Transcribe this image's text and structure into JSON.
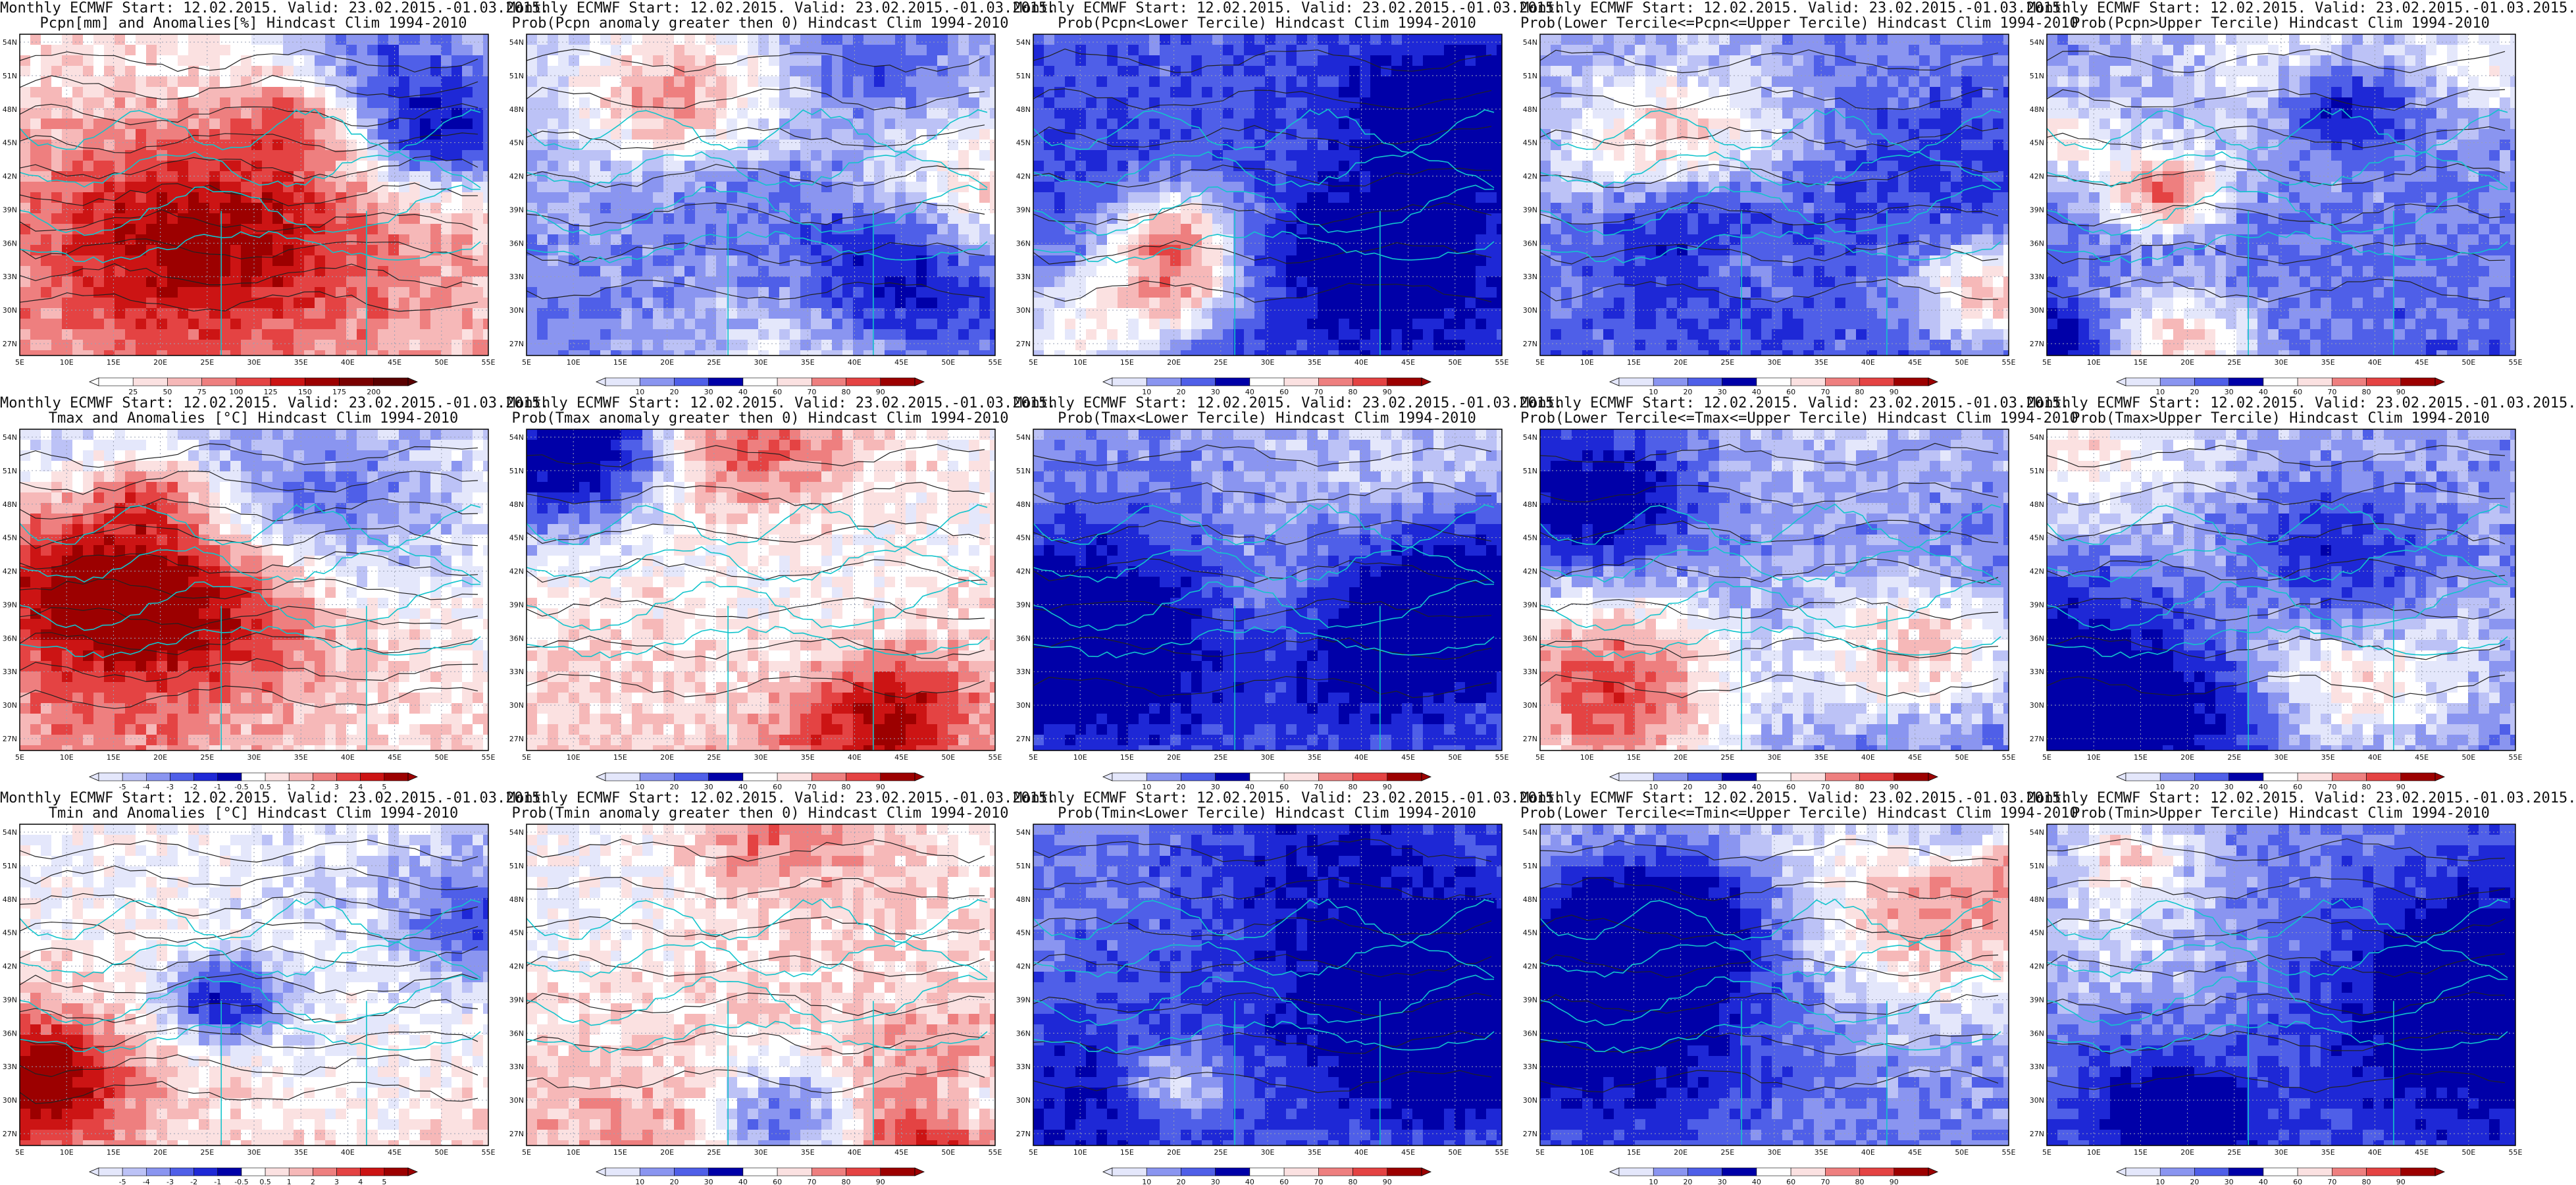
{
  "figure": {
    "kind": "ECMWF monthly forecast map grid",
    "rows": 3,
    "cols": 5
  },
  "map_axes": {
    "lon_labels": [
      "5E",
      "10E",
      "15E",
      "20E",
      "25E",
      "30E",
      "35E",
      "40E",
      "45E",
      "50E",
      "55E"
    ],
    "lat_labels": [
      "54N",
      "51N",
      "48N",
      "45N",
      "42N",
      "39N",
      "36N",
      "33N",
      "30N",
      "27N"
    ]
  },
  "colorbars": {
    "pcpn_anom": [
      "25",
      "50",
      "75",
      "100",
      "125",
      "150",
      "175",
      "200"
    ],
    "temp_anom": [
      "-5",
      "-4",
      "-3",
      "-2",
      "-1",
      "-0.5",
      "0.5",
      "1",
      "2",
      "3",
      "4",
      "5"
    ],
    "prob": [
      "10",
      "20",
      "30",
      "40",
      "60",
      "70",
      "80",
      "90"
    ]
  },
  "palettes": {
    "blues": [
      "#0000a8",
      "#1e28d6",
      "#4f5fe8",
      "#8a95f0",
      "#bcc2f6",
      "#e4e7fb"
    ],
    "reds": [
      "#fbe1e1",
      "#f6b8b8",
      "#ee7f7f",
      "#e44343",
      "#cc1414",
      "#9c0000"
    ],
    "land_contour": "#12c4cc",
    "isoline": "#222222"
  },
  "panels": [
    {
      "line1": "Monthly ECMWF Start: 12.02.2015. Valid: 23.02.2015.-01.03.2015.",
      "line2": "Pcpn[mm] and Anomalies[%] Hindcast Clim 1994-2010",
      "bias": 0.35,
      "seed": 11,
      "cb": "pcpn_anom"
    },
    {
      "line1": "Monthly ECMWF Start: 12.02.2015. Valid: 23.02.2015.-01.03.2015.",
      "line2": "Prob(Pcpn anomaly greater then 0) Hindcast Clim 1994-2010",
      "bias": -0.35,
      "seed": 12,
      "cb": "prob"
    },
    {
      "line1": "Monthly ECMWF Start: 12.02.2015. Valid: 23.02.2015.-01.03.2015.",
      "line2": "Prob(Pcpn<Lower Tercile) Hindcast Clim 1994-2010",
      "bias": -0.7,
      "seed": 13,
      "cb": "prob"
    },
    {
      "line1": "Monthly ECMWF Start: 12.02.2015. Valid: 23.02.2015.-01.03.2015.",
      "line2": "Prob(Lower Tercile<=Pcpn<=Upper Tercile) Hindcast Clim 1994-2010",
      "bias": -0.5,
      "seed": 14,
      "cb": "prob"
    },
    {
      "line1": "Monthly ECMWF Start: 12.02.2015. Valid: 23.02.2015.-01.03.2015.",
      "line2": "Prob(Pcpn>Upper Tercile) Hindcast Clim 1994-2010",
      "bias": -0.45,
      "seed": 15,
      "cb": "prob"
    },
    {
      "line1": "Monthly ECMWF Start: 12.02.2015. Valid: 23.02.2015.-01.03.2015.",
      "line2": "Tmax and Anomalies [°C] Hindcast Clim 1994-2010",
      "bias": 0.15,
      "seed": 21,
      "cb": "temp_anom"
    },
    {
      "line1": "Monthly ECMWF Start: 12.02.2015. Valid: 23.02.2015.-01.03.2015.",
      "line2": "Prob(Tmax anomaly greater then 0) Hindcast Clim 1994-2010",
      "bias": 0.25,
      "seed": 22,
      "cb": "prob"
    },
    {
      "line1": "Monthly ECMWF Start: 12.02.2015. Valid: 23.02.2015.-01.03.2015.",
      "line2": "Prob(Tmax<Lower Tercile) Hindcast Clim 1994-2010",
      "bias": -0.45,
      "seed": 23,
      "cb": "prob"
    },
    {
      "line1": "Monthly ECMWF Start: 12.02.2015. Valid: 23.02.2015.-01.03.2015.",
      "line2": "Prob(Lower Tercile<=Tmax<=Upper Tercile) Hindcast Clim 1994-2010",
      "bias": -0.35,
      "seed": 24,
      "cb": "prob"
    },
    {
      "line1": "Monthly ECMWF Start: 12.02.2015. Valid: 23.02.2015.-01.03.2015.",
      "line2": "Prob(Tmax>Upper Tercile) Hindcast Clim 1994-2010",
      "bias": -0.4,
      "seed": 25,
      "cb": "prob"
    },
    {
      "line1": "Monthly ECMWF Start: 12.02.2015. Valid: 23.02.2015.-01.03.2015.",
      "line2": "Tmin and Anomalies [°C] Hindcast Clim 1994-2010",
      "bias": 0.2,
      "seed": 31,
      "cb": "temp_anom"
    },
    {
      "line1": "Monthly ECMWF Start: 12.02.2015. Valid: 23.02.2015.-01.03.2015.",
      "line2": "Prob(Tmin anomaly greater then 0) Hindcast Clim 1994-2010",
      "bias": 0.3,
      "seed": 32,
      "cb": "prob"
    },
    {
      "line1": "Monthly ECMWF Start: 12.02.2015. Valid: 23.02.2015.-01.03.2015.",
      "line2": "Prob(Tmin<Lower Tercile) Hindcast Clim 1994-2010",
      "bias": -0.55,
      "seed": 33,
      "cb": "prob"
    },
    {
      "line1": "Monthly ECMWF Start: 12.02.2015. Valid: 23.02.2015.-01.03.2015.",
      "line2": "Prob(Lower Tercile<=Tmin<=Upper Tercile) Hindcast Clim 1994-2010",
      "bias": -0.3,
      "seed": 34,
      "cb": "prob"
    },
    {
      "line1": "Monthly ECMWF Start: 12.02.2015. Valid: 23.02.2015.-01.03.2015.",
      "line2": "Prob(Tmin>Upper Tercile) Hindcast Clim 1994-2010",
      "bias": -0.55,
      "seed": 35,
      "cb": "prob"
    }
  ]
}
